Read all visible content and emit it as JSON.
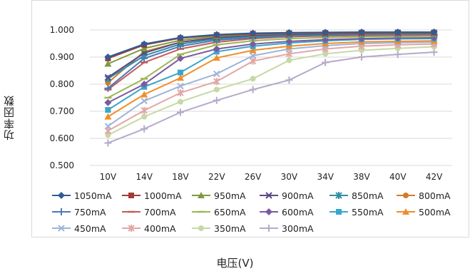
{
  "chart_data": {
    "type": "line",
    "title": "",
    "xlabel": "电压(V)",
    "ylabel": "功率因数",
    "categories": [
      "10V",
      "14V",
      "18V",
      "22V",
      "26V",
      "30V",
      "34V",
      "38V",
      "40V",
      "42V"
    ],
    "ylim": [
      0.5,
      1.0
    ],
    "yticks": [
      "0.500",
      "0.600",
      "0.700",
      "0.800",
      "0.900",
      "1.000"
    ],
    "grid": "horizontal",
    "legend_position": "bottom",
    "series": [
      {
        "name": "1050mA",
        "color": "#2e5d95",
        "marker": "diamond",
        "values": [
          0.9,
          0.948,
          0.972,
          0.983,
          0.988,
          0.99,
          0.991,
          0.992,
          0.992,
          0.992
        ]
      },
      {
        "name": "1000mA",
        "color": "#a33a38",
        "marker": "square",
        "values": [
          0.895,
          0.945,
          0.97,
          0.981,
          0.986,
          0.988,
          0.989,
          0.99,
          0.991,
          0.991
        ]
      },
      {
        "name": "950mA",
        "color": "#7e9a3f",
        "marker": "triangle",
        "values": [
          0.875,
          0.932,
          0.962,
          0.977,
          0.984,
          0.987,
          0.988,
          0.989,
          0.99,
          0.99
        ]
      },
      {
        "name": "900mA",
        "color": "#5b4a84",
        "marker": "x",
        "values": [
          0.825,
          0.915,
          0.955,
          0.972,
          0.98,
          0.984,
          0.986,
          0.987,
          0.988,
          0.988
        ]
      },
      {
        "name": "850mA",
        "color": "#2f8ea5",
        "marker": "asterisk",
        "values": [
          0.82,
          0.905,
          0.948,
          0.967,
          0.977,
          0.982,
          0.984,
          0.986,
          0.986,
          0.987
        ]
      },
      {
        "name": "800mA",
        "color": "#d47b2a",
        "marker": "circle",
        "values": [
          0.805,
          0.92,
          0.955,
          0.97,
          0.978,
          0.982,
          0.984,
          0.985,
          0.985,
          0.986
        ]
      },
      {
        "name": "750mA",
        "color": "#4a79b8",
        "marker": "plus",
        "values": [
          0.785,
          0.895,
          0.94,
          0.962,
          0.972,
          0.978,
          0.981,
          0.983,
          0.984,
          0.984
        ]
      },
      {
        "name": "700mA",
        "color": "#c45a58",
        "marker": "dash",
        "values": [
          0.78,
          0.88,
          0.93,
          0.955,
          0.968,
          0.975,
          0.978,
          0.98,
          0.981,
          0.982
        ]
      },
      {
        "name": "650mA",
        "color": "#9ab850",
        "marker": "dash",
        "values": [
          0.75,
          0.82,
          0.91,
          0.945,
          0.96,
          0.968,
          0.972,
          0.975,
          0.976,
          0.977
        ]
      },
      {
        "name": "600mA",
        "color": "#7d5aa0",
        "marker": "diamond",
        "values": [
          0.732,
          0.8,
          0.895,
          0.93,
          0.948,
          0.958,
          0.964,
          0.968,
          0.97,
          0.971
        ]
      },
      {
        "name": "550mA",
        "color": "#3aa6c9",
        "marker": "square",
        "values": [
          0.705,
          0.79,
          0.843,
          0.92,
          0.94,
          0.952,
          0.96,
          0.965,
          0.967,
          0.968
        ]
      },
      {
        "name": "500mA",
        "color": "#f08d2b",
        "marker": "triangle",
        "values": [
          0.68,
          0.762,
          0.823,
          0.897,
          0.925,
          0.94,
          0.95,
          0.956,
          0.958,
          0.96
        ]
      },
      {
        "name": "450mA",
        "color": "#9fb4d8",
        "marker": "x",
        "values": [
          0.645,
          0.738,
          0.793,
          0.838,
          0.905,
          0.93,
          0.942,
          0.95,
          0.953,
          0.955
        ]
      },
      {
        "name": "400mA",
        "color": "#e2a6a5",
        "marker": "asterisk",
        "values": [
          0.628,
          0.703,
          0.768,
          0.81,
          0.885,
          0.912,
          0.93,
          0.94,
          0.945,
          0.948
        ]
      },
      {
        "name": "350mA",
        "color": "#c6d9a4",
        "marker": "circle",
        "values": [
          0.612,
          0.68,
          0.735,
          0.78,
          0.82,
          0.888,
          0.912,
          0.925,
          0.932,
          0.938
        ]
      },
      {
        "name": "300mA",
        "color": "#b6aac9",
        "marker": "plus",
        "values": [
          0.583,
          0.635,
          0.696,
          0.74,
          0.78,
          0.815,
          0.88,
          0.9,
          0.91,
          0.918
        ]
      }
    ]
  }
}
